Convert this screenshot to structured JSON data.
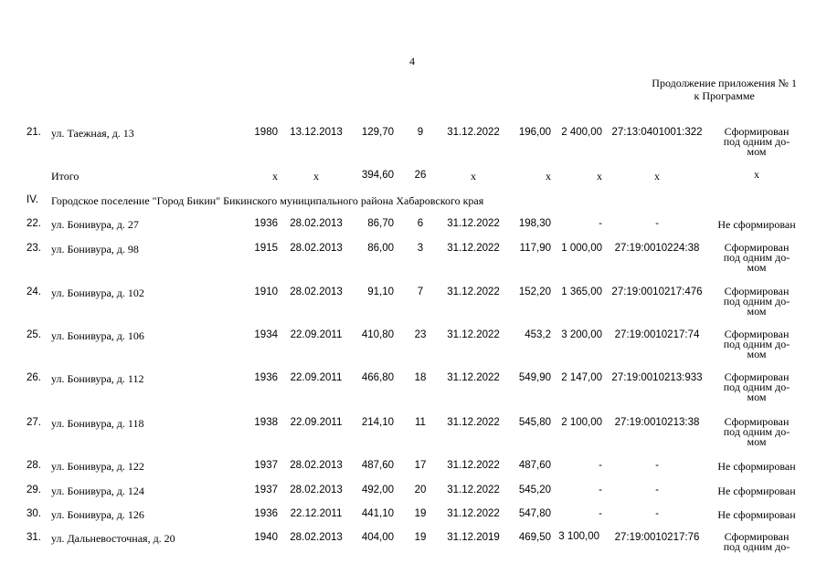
{
  "page_number": "4",
  "header_note": [
    "Продолжение приложения № 1",
    "к Программе"
  ],
  "rows_before": [
    {
      "num": "21.",
      "address": "ул. Таежная, д. 13",
      "year": "1980",
      "date1": "13.12.2013",
      "area": "129,70",
      "count": "9",
      "date2": "31.12.2022",
      "area2": "196,00",
      "amount": "2 400,00",
      "cadastral": "27:13:0401001:322",
      "status": [
        "Сформирован",
        "под одним до-",
        "мом"
      ]
    }
  ],
  "total": {
    "label": "Итого",
    "year": "х",
    "date1": "х",
    "area": "394,60",
    "count": "26",
    "date2": "х",
    "area2": "х",
    "amount": "х",
    "cadastral": "х",
    "status": "х"
  },
  "section": {
    "num": "IV.",
    "title": "Городское поселение \"Город Бикин\" Бикинского муниципального района Хабаровского края"
  },
  "rows": [
    {
      "num": "22.",
      "address": "ул. Бонивура, д. 27",
      "year": "1936",
      "date1": "28.02.2013",
      "area": "86,70",
      "count": "6",
      "date2": "31.12.2022",
      "area2": "198,30",
      "amount": "-",
      "cadastral": "-",
      "status": [
        "Не сформирован"
      ]
    },
    {
      "num": "23.",
      "address": "ул. Бонивура, д. 98",
      "year": "1915",
      "date1": "28.02.2013",
      "area": "86,00",
      "count": "3",
      "date2": "31.12.2022",
      "area2": "117,90",
      "amount": "1 000,00",
      "cadastral": "27:19:0010224:38",
      "status": [
        "Сформирован",
        "под одним до-",
        "мом"
      ]
    },
    {
      "num": "24.",
      "address": "ул. Бонивура, д. 102",
      "year": "1910",
      "date1": "28.02.2013",
      "area": "91,10",
      "count": "7",
      "date2": "31.12.2022",
      "area2": "152,20",
      "amount": "1 365,00",
      "cadastral": "27:19:0010217:476",
      "status": [
        "Сформирован",
        "под одним до-",
        "мом"
      ]
    },
    {
      "num": "25.",
      "address": "ул. Бонивура, д. 106",
      "year": "1934",
      "date1": "22.09.2011",
      "area": "410,80",
      "count": "23",
      "date2": "31.12.2022",
      "area2": "453,2",
      "amount": "3 200,00",
      "cadastral": "27:19:0010217:74",
      "status": [
        "Сформирован",
        "под одним до-",
        "мом"
      ]
    },
    {
      "num": "26.",
      "address": "ул. Бонивура, д. 112",
      "year": "1936",
      "date1": "22.09.2011",
      "area": "466,80",
      "count": "18",
      "date2": "31.12.2022",
      "area2": "549,90",
      "amount": "2 147,00",
      "cadastral": "27:19:0010213:933",
      "status": [
        "Сформирован",
        "под одним до-",
        "мом"
      ]
    },
    {
      "num": "27.",
      "address": "ул. Бонивура, д. 118",
      "year": "1938",
      "date1": "22.09.2011",
      "area": "214,10",
      "count": "11",
      "date2": "31.12.2022",
      "area2": "545,80",
      "amount": "2 100,00",
      "cadastral": "27:19:0010213:38",
      "status": [
        "Сформирован",
        "под одним до-",
        "мом"
      ]
    },
    {
      "num": "28.",
      "address": "ул. Бонивура, д. 122",
      "year": "1937",
      "date1": "28.02.2013",
      "area": "487,60",
      "count": "17",
      "date2": "31.12.2022",
      "area2": "487,60",
      "amount": "-",
      "cadastral": "-",
      "status": [
        "Не сформирован"
      ]
    },
    {
      "num": "29.",
      "address": "ул. Бонивура, д. 124",
      "year": "1937",
      "date1": "28.02.2013",
      "area": "492,00",
      "count": "20",
      "date2": "31.12.2022",
      "area2": "545,20",
      "amount": "-",
      "cadastral": "-",
      "status": [
        "Не сформирован"
      ]
    },
    {
      "num": "30.",
      "address": "ул. Бонивура, д. 126",
      "year": "1936",
      "date1": "22.12.2011",
      "area": "441,10",
      "count": "19",
      "date2": "31.12.2022",
      "area2": "547,80",
      "amount": "-",
      "cadastral": "-",
      "status": [
        "Не сформирован"
      ]
    },
    {
      "num": "31.",
      "address": "ул. Дальневосточная, д. 20",
      "year": "1940",
      "date1": "28.02.2013",
      "area": "404,00",
      "count": "19",
      "date2": "31.12.2019",
      "area2": "469,50",
      "amount": "3 100,00",
      "cadastral": "27:19:0010217:76",
      "status": [
        "Сформирован",
        "под одним до-"
      ]
    }
  ]
}
